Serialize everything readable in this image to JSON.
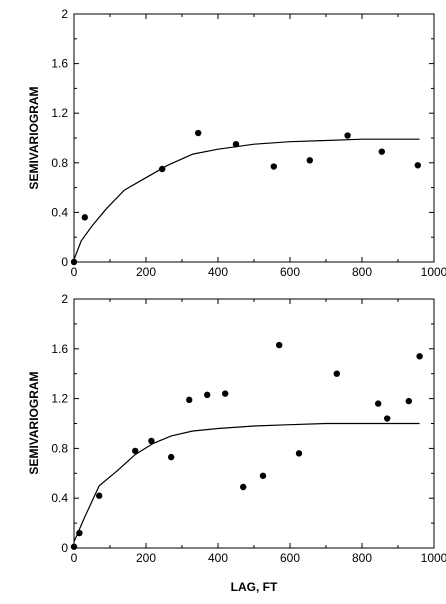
{
  "chart_data": [
    {
      "type": "scatter",
      "title": "",
      "xlabel": "",
      "ylabel": "SEMIVARIOGRAM",
      "xlim": [
        0,
        1000
      ],
      "ylim": [
        0,
        2
      ],
      "x_ticks": [
        "0",
        "200",
        "400",
        "600",
        "800",
        "1000"
      ],
      "y_ticks": [
        "0",
        "0.4",
        "0.8",
        "1.2",
        "1.6",
        "2"
      ],
      "grid": false,
      "series": [
        {
          "kind": "points",
          "x": [
            0,
            30,
            245,
            345,
            450,
            555,
            655,
            760,
            855,
            955
          ],
          "y": [
            0,
            0.36,
            0.75,
            1.04,
            0.95,
            0.77,
            0.82,
            1.02,
            0.89,
            0.78
          ]
        },
        {
          "kind": "line",
          "x": [
            0,
            20,
            50,
            90,
            140,
            200,
            260,
            330,
            400,
            500,
            600,
            700,
            800,
            900,
            960
          ],
          "y": [
            0.02,
            0.17,
            0.29,
            0.43,
            0.58,
            0.68,
            0.78,
            0.87,
            0.91,
            0.95,
            0.97,
            0.98,
            0.99,
            0.99,
            0.99
          ]
        }
      ]
    },
    {
      "type": "scatter",
      "title": "",
      "xlabel": "LAG, FT",
      "ylabel": "SEMIVARIOGRAM",
      "xlim": [
        0,
        1000
      ],
      "ylim": [
        0,
        2
      ],
      "x_ticks": [
        "0",
        "200",
        "400",
        "600",
        "800",
        "1000"
      ],
      "y_ticks": [
        "0",
        "0.4",
        "0.8",
        "1.2",
        "1.6",
        "2"
      ],
      "grid": false,
      "series": [
        {
          "kind": "points",
          "x": [
            0,
            15,
            70,
            170,
            215,
            270,
            320,
            370,
            420,
            470,
            525,
            570,
            625,
            730,
            845,
            870,
            930,
            960
          ],
          "y": [
            0.01,
            0.12,
            0.42,
            0.78,
            0.86,
            0.73,
            1.19,
            1.23,
            1.24,
            0.49,
            0.58,
            1.63,
            0.76,
            1.4,
            1.16,
            1.04,
            1.18,
            1.54
          ]
        },
        {
          "kind": "line",
          "x": [
            0,
            30,
            70,
            120,
            170,
            220,
            270,
            330,
            400,
            500,
            600,
            700,
            800,
            900,
            960
          ],
          "y": [
            0.05,
            0.25,
            0.5,
            0.62,
            0.75,
            0.84,
            0.9,
            0.94,
            0.96,
            0.98,
            0.99,
            1.0,
            1.0,
            1.0,
            1.0
          ]
        }
      ]
    }
  ]
}
